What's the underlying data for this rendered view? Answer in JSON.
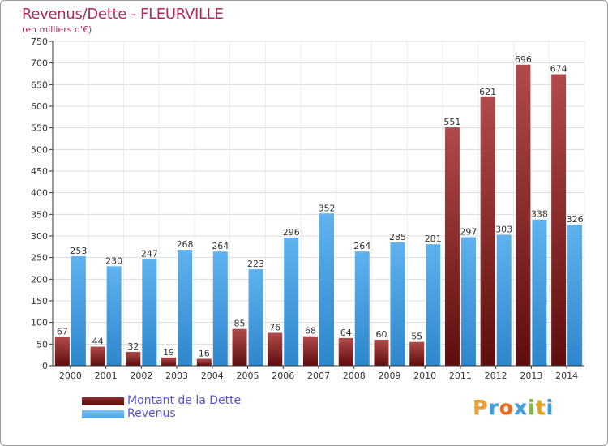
{
  "header": {
    "title": "Revenus/Dette - FLEURVILLE",
    "subtitle": "(en milliers d'€)"
  },
  "legend": {
    "items": [
      {
        "label": "Montant de la Dette",
        "color": "#5e0d0d"
      },
      {
        "label": "Revenus",
        "color": "#4aa3e6"
      }
    ]
  },
  "brand": {
    "letters": [
      "P",
      "r",
      "o",
      "x",
      "i",
      "t",
      "i"
    ],
    "colors": [
      "#f2a02c",
      "#3aa0db",
      "#e86a1c",
      "#3aa0db",
      "#7bbd2d",
      "#e8a417",
      "#3aa0db"
    ]
  },
  "chart_data": {
    "type": "bar",
    "title": "Revenus/Dette - FLEURVILLE",
    "ylabel": "(en milliers d'€)",
    "xlabel": "",
    "categories": [
      "2000",
      "2001",
      "2002",
      "2003",
      "2004",
      "2005",
      "2006",
      "2007",
      "2008",
      "2009",
      "2010",
      "2011",
      "2012",
      "2013",
      "2014"
    ],
    "series": [
      {
        "name": "Montant de la Dette",
        "color_light": "#b24a4a",
        "color_dark": "#5e0d0d",
        "values": [
          67,
          44,
          32,
          19,
          16,
          85,
          76,
          68,
          64,
          60,
          55,
          551,
          621,
          696,
          674
        ]
      },
      {
        "name": "Revenus",
        "color_light": "#5eb2ee",
        "color_dark": "#2e86cc",
        "values": [
          253,
          230,
          247,
          268,
          264,
          223,
          296,
          352,
          264,
          285,
          281,
          297,
          303,
          338,
          326
        ]
      }
    ],
    "ylim": [
      0,
      750
    ],
    "yticks": [
      0,
      50,
      100,
      150,
      200,
      250,
      300,
      350,
      400,
      450,
      500,
      550,
      600,
      650,
      700,
      750
    ],
    "grid": true,
    "legend_position": "bottom-left"
  }
}
